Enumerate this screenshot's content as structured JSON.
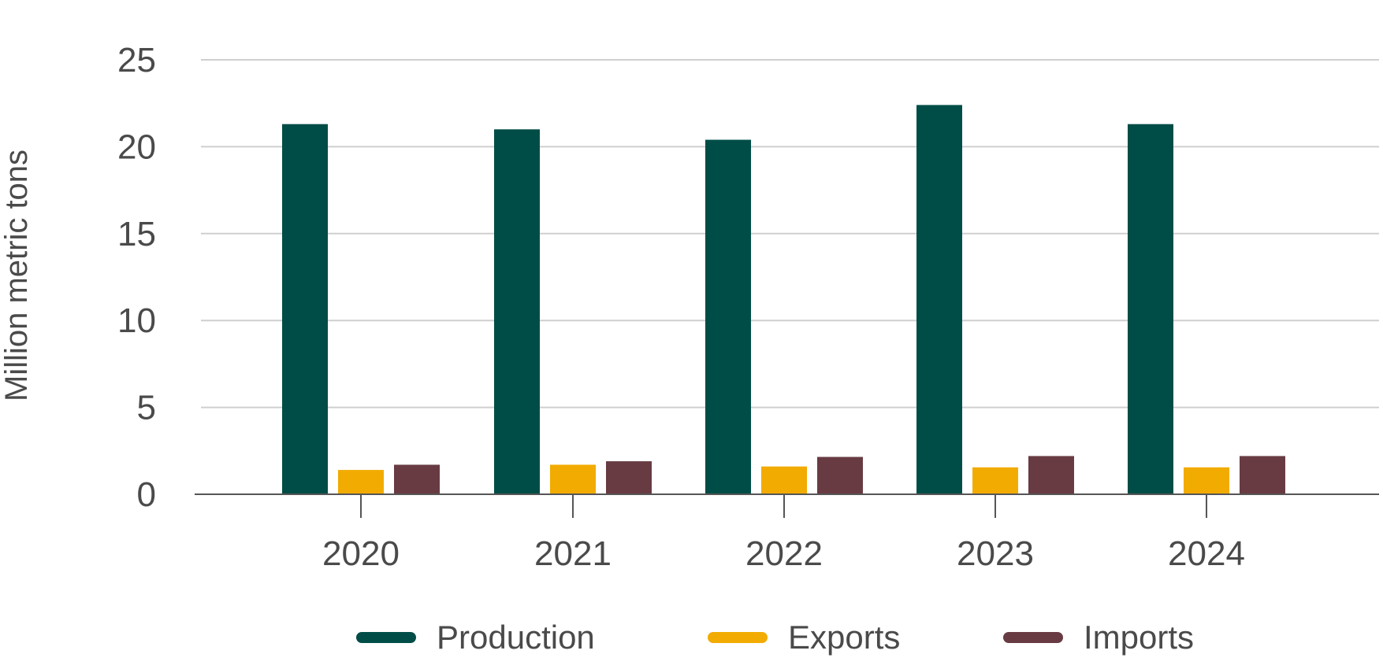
{
  "chart_data": {
    "type": "bar",
    "categories": [
      "2020",
      "2021",
      "2022",
      "2023",
      "2024"
    ],
    "series": [
      {
        "name": "Production",
        "values": [
          21.3,
          21.0,
          20.4,
          22.4,
          21.3
        ],
        "color": "#004d47"
      },
      {
        "name": "Exports",
        "values": [
          1.4,
          1.7,
          1.6,
          1.55,
          1.55
        ],
        "color": "#f2ab00"
      },
      {
        "name": "Imports",
        "values": [
          1.7,
          1.9,
          2.15,
          2.2,
          2.2
        ],
        "color": "#683b42"
      }
    ],
    "ylabel": "Million metric tons",
    "ylim": [
      0,
      25
    ],
    "yticks": [
      "0",
      "5",
      "10",
      "15",
      "20",
      "25"
    ],
    "grid": true,
    "legend_position": "bottom"
  }
}
